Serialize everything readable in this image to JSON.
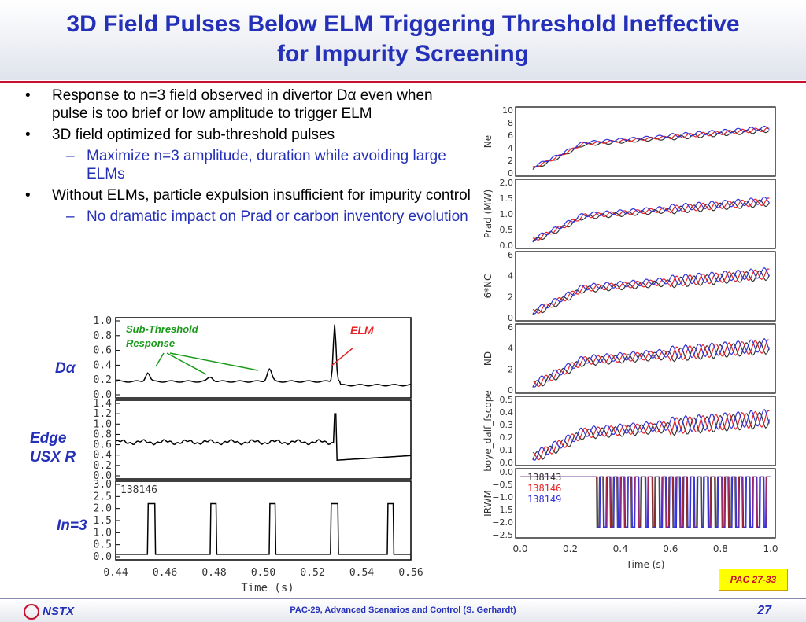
{
  "slide": {
    "title_line1": "3D Field Pulses Below ELM Triggering Threshold Ineffective",
    "title_line2": "for Impurity Screening",
    "bullets": [
      {
        "level": 1,
        "text": "Response to n=3 field observed in divertor Dα even when pulse is too brief or low amplitude to trigger ELM"
      },
      {
        "level": 1,
        "text": "3D field optimized for sub-threshold pulses"
      },
      {
        "level": 2,
        "text": "Maximize n=3 amplitude, duration while avoiding large ELMs"
      },
      {
        "level": 1,
        "text": "Without ELMs, particle expulsion insufficient for impurity control"
      },
      {
        "level": 2,
        "text": "No dramatic impact on Prad or carbon inventory evolution"
      }
    ],
    "footer": "PAC-29, Advanced Scenarios and Control (S. Gerhardt)",
    "page_number": "27",
    "logo_text": "NSTX",
    "badge": "PAC 27-33",
    "colors": {
      "title": "#2430b8",
      "accent_red": "#c8102e",
      "sub_bullet": "#2430b8"
    }
  },
  "left_figure": {
    "annotations": {
      "sub_threshold": "Sub-Threshold Response",
      "elm": "ELM"
    },
    "row_labels": {
      "d_alpha": "Dα",
      "edge_usxr": "Edge USX R",
      "i_n3": "In=3"
    },
    "shot_label": "138146",
    "x_label": "Time (s)"
  },
  "chart_data": [
    {
      "type": "line",
      "panel": "left-top",
      "ylim": [
        0,
        1.0
      ],
      "yticks": [
        "1.0",
        "0.8",
        "0.6",
        "0.4",
        "0.2",
        "0.0"
      ],
      "xlim": [
        0.44,
        0.56
      ]
    },
    {
      "type": "line",
      "panel": "left-mid",
      "ylim": [
        0,
        1.4
      ],
      "yticks": [
        "1.4",
        "1.2",
        "1.0",
        "0.8",
        "0.6",
        "0.4",
        "0.2",
        "0.0"
      ],
      "xlim": [
        0.44,
        0.56
      ]
    },
    {
      "type": "line",
      "panel": "left-bot",
      "ylim": [
        0,
        3.0
      ],
      "yticks": [
        "3.0",
        "2.5",
        "2.0",
        "1.5",
        "1.0",
        "0.5",
        "0.0"
      ],
      "xlim": [
        0.44,
        0.56
      ],
      "xticks": [
        "0.44",
        "0.46",
        "0.48",
        "0.50",
        "0.52",
        "0.54",
        "0.56"
      ],
      "xlabel": "Time (s)"
    },
    {
      "type": "line",
      "panel": "right",
      "xlim": [
        0.0,
        1.0
      ],
      "xticks": [
        "0.0",
        "0.2",
        "0.4",
        "0.6",
        "0.8",
        "1.0"
      ],
      "xlabel": "Time (s)",
      "legend": [
        {
          "name": "138143",
          "color": "#333333"
        },
        {
          "name": "138146",
          "color": "#e8242a"
        },
        {
          "name": "138149",
          "color": "#3333dd"
        }
      ],
      "subplots": [
        {
          "ylabel": "Ne",
          "yticks": [
            "10",
            "8",
            "6",
            "4",
            "2",
            "0"
          ]
        },
        {
          "ylabel": "Prad (MW)",
          "yticks": [
            "2.0",
            "1.5",
            "1.0",
            "0.5",
            "0.0"
          ]
        },
        {
          "ylabel": "6*NC",
          "yticks": [
            "6",
            "4",
            "2",
            "0"
          ]
        },
        {
          "ylabel": "ND",
          "yticks": [
            "6",
            "4",
            "2",
            "0"
          ]
        },
        {
          "ylabel": "boye_dalf_fscope",
          "yticks": [
            "0.5",
            "0.4",
            "0.3",
            "0.2",
            "0.1",
            "0.0"
          ]
        },
        {
          "ylabel": "IRWM",
          "yticks": [
            "0.0",
            "−0.5",
            "−1.0",
            "−1.5",
            "−2.0",
            "−2.5"
          ]
        }
      ]
    }
  ]
}
